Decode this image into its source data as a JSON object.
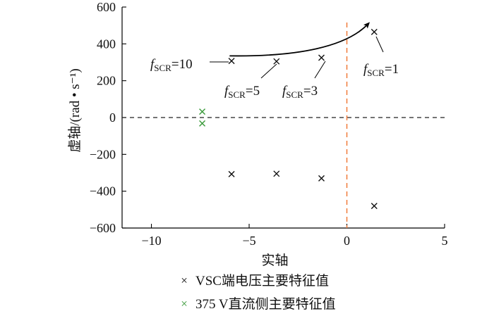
{
  "chart_data": {
    "type": "scatter",
    "xlabel": "实轴",
    "ylabel": "虚轴/(rad • s⁻¹)",
    "xlim": [
      -11.5,
      5
    ],
    "ylim": [
      -600,
      600
    ],
    "x_ticks": [
      {
        "value": -10,
        "label": "−10"
      },
      {
        "value": -5,
        "label": "−5"
      },
      {
        "value": 0,
        "label": "0"
      },
      {
        "value": 5,
        "label": "5"
      }
    ],
    "y_ticks": [
      {
        "value": 600,
        "label": "600"
      },
      {
        "value": 400,
        "label": "400"
      },
      {
        "value": 200,
        "label": "200"
      },
      {
        "value": 0,
        "label": "0"
      },
      {
        "value": -200,
        "label": "−200"
      },
      {
        "value": -400,
        "label": "−400"
      },
      {
        "value": -600,
        "label": "−600"
      }
    ],
    "grid": false,
    "reference_lines": [
      {
        "axis": "y",
        "value": 0,
        "style": "dashed",
        "color": "#222222"
      },
      {
        "axis": "x",
        "value": 0,
        "style": "dashed",
        "color": "#f07a3a"
      }
    ],
    "series": [
      {
        "name": "VSC端电压主要特征值",
        "marker": "x",
        "color": "#111111",
        "points": [
          {
            "x": -5.9,
            "y": 307
          },
          {
            "x": -3.6,
            "y": 305
          },
          {
            "x": -1.3,
            "y": 325
          },
          {
            "x": 1.4,
            "y": 465
          },
          {
            "x": -5.9,
            "y": -307
          },
          {
            "x": -3.6,
            "y": -305
          },
          {
            "x": -1.3,
            "y": -330
          },
          {
            "x": 1.4,
            "y": -480
          }
        ]
      },
      {
        "name": "375 V直流侧主要特征值",
        "marker": "x",
        "color": "#3a9a3a",
        "points": [
          {
            "x": -7.4,
            "y": 32
          },
          {
            "x": -7.4,
            "y": -32
          }
        ]
      }
    ],
    "trajectory_arrow": {
      "description_points": [
        [
          -6.0,
          335
        ],
        [
          -2.5,
          330
        ],
        [
          0,
          385
        ],
        [
          1.1,
          510
        ]
      ]
    },
    "annotations": [
      {
        "prefix": "f",
        "subscript": "SCR",
        "suffix": "=10",
        "target": {
          "x": -5.9,
          "y": 307
        }
      },
      {
        "prefix": "f",
        "subscript": "SCR",
        "suffix": "=5",
        "target": {
          "x": -3.6,
          "y": 305
        }
      },
      {
        "prefix": "f",
        "subscript": "SCR",
        "suffix": "=3",
        "target": {
          "x": -1.3,
          "y": 325
        }
      },
      {
        "prefix": "f",
        "subscript": "SCR",
        "suffix": "=1",
        "target": {
          "x": 1.4,
          "y": 465
        }
      }
    ],
    "legend": {
      "placement": "bottom",
      "items": [
        {
          "marker": "×",
          "color": "#111111",
          "label": "VSC端电压主要特征值"
        },
        {
          "marker": "×",
          "color": "#3a9a3a",
          "label": "375 V直流侧主要特征值"
        }
      ]
    }
  }
}
